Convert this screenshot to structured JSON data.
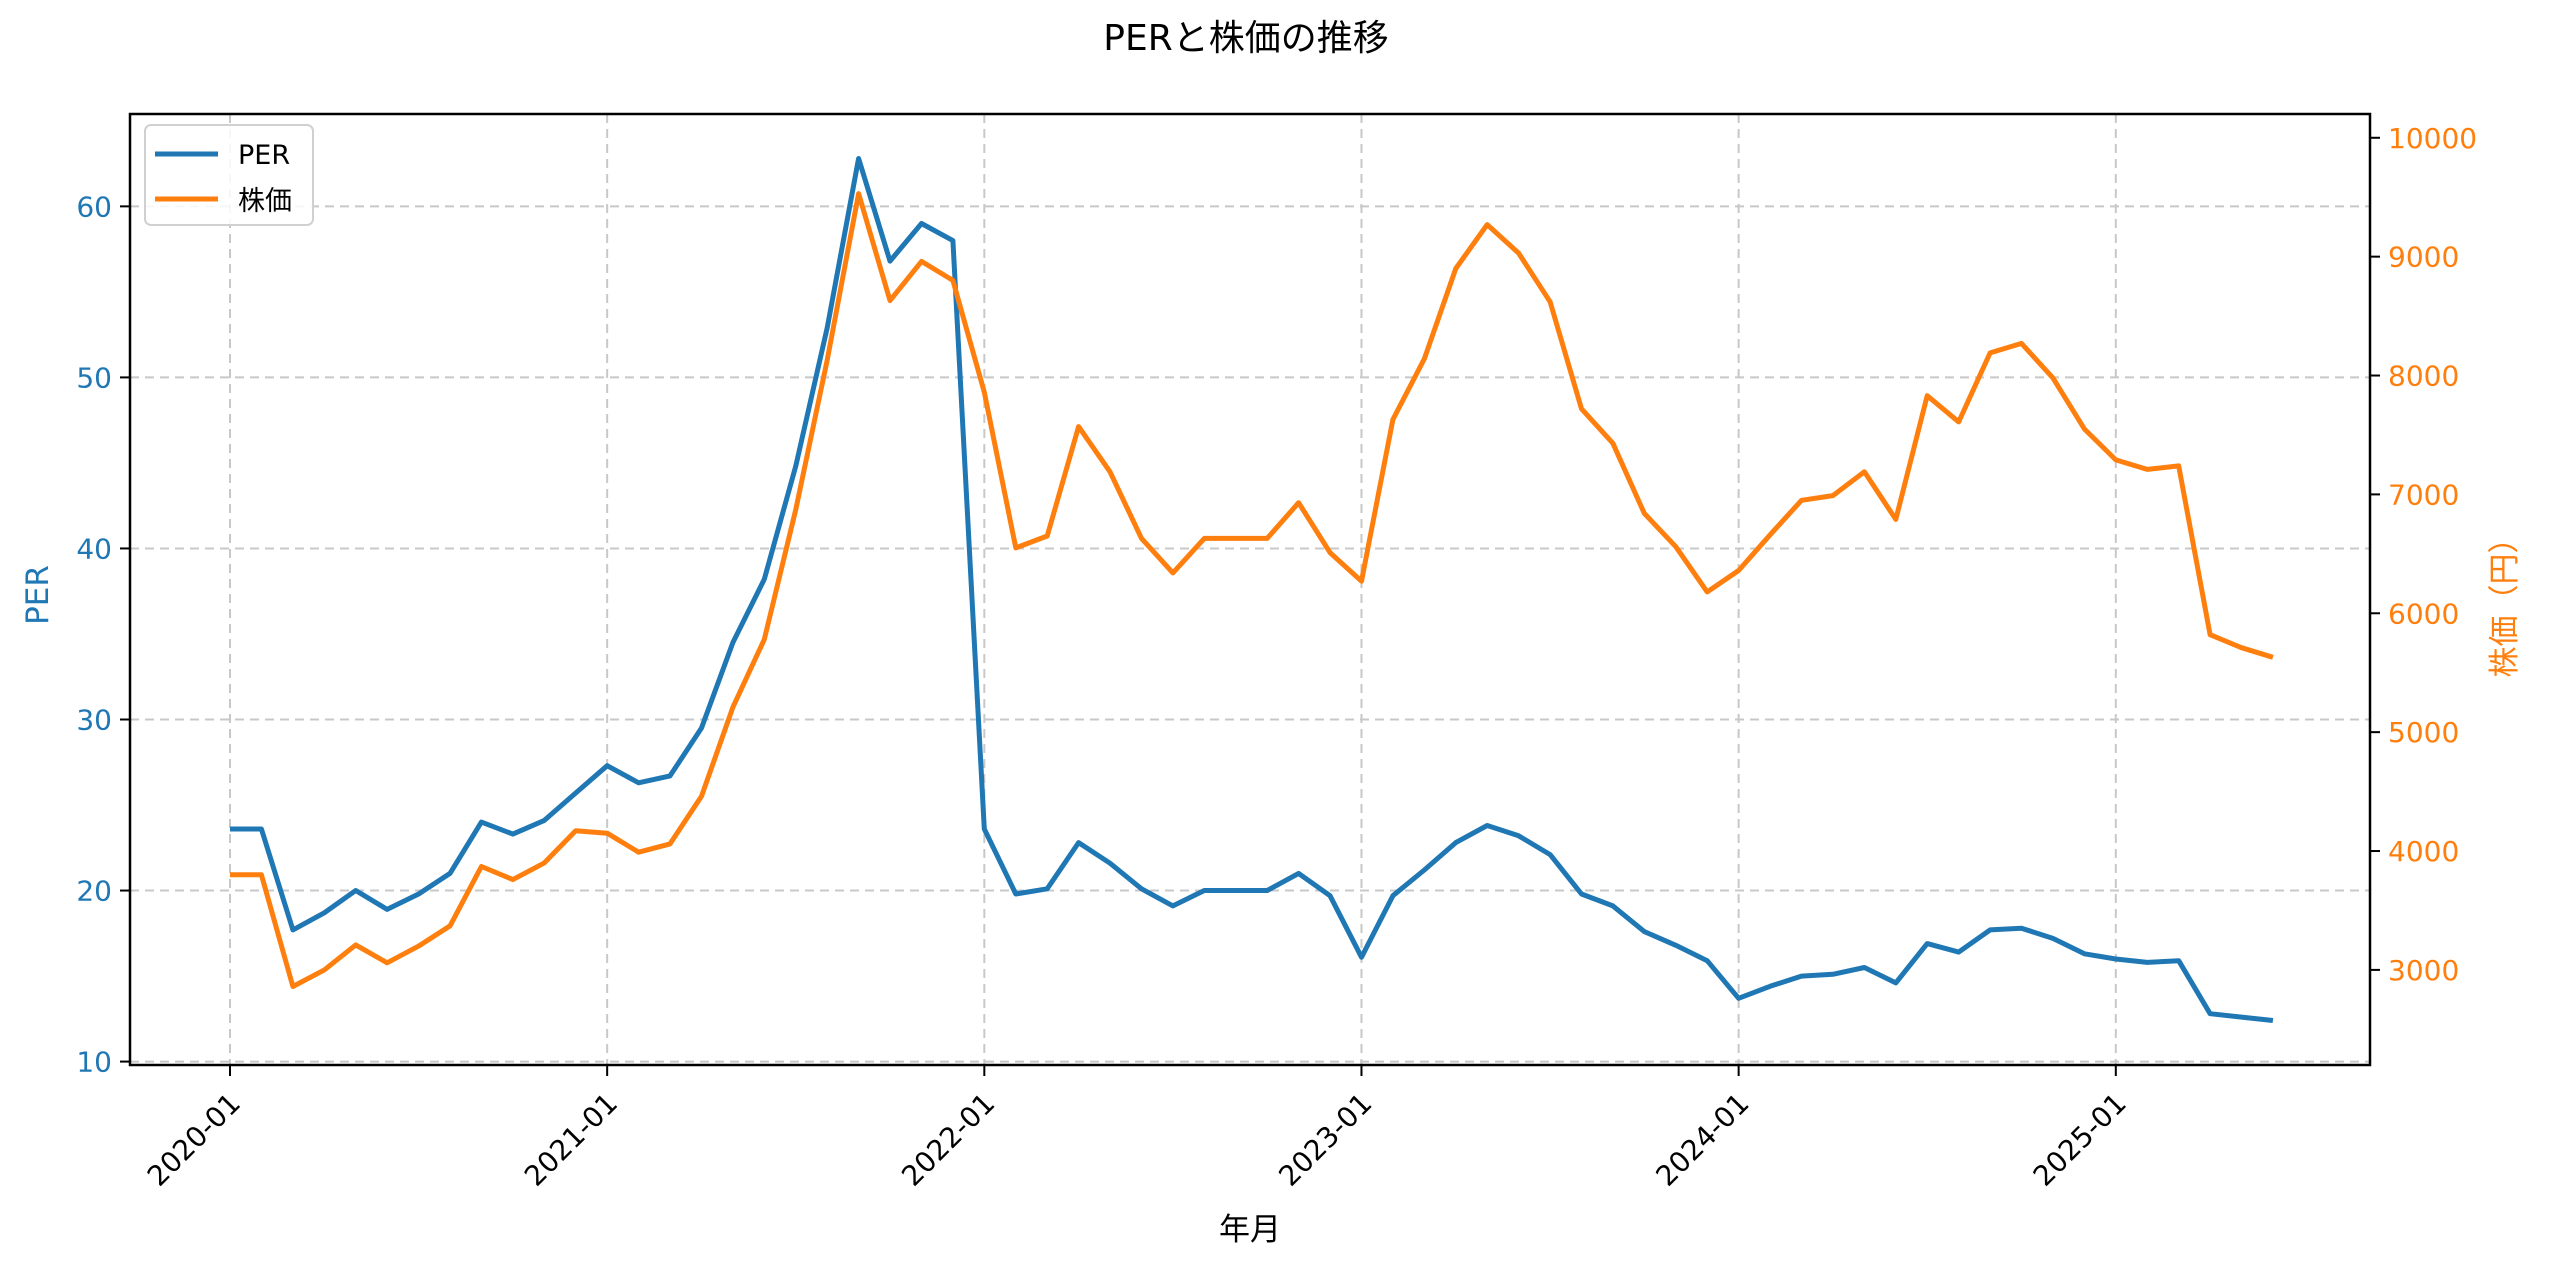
{
  "chart_data": {
    "type": "line",
    "title": "PERと株価の推移",
    "xlabel": "年月",
    "ylabel_left": "PER",
    "ylabel_right": "株価（円）",
    "ylim_left": [
      9.8,
      65.4
    ],
    "ylim_right": [
      2200,
      10200
    ],
    "yticks_left": [
      10,
      20,
      30,
      40,
      50,
      60
    ],
    "yticks_right": [
      3000,
      4000,
      5000,
      6000,
      7000,
      8000,
      9000,
      10000
    ],
    "xticks": [
      "2020-01",
      "2021-01",
      "2022-01",
      "2023-01",
      "2024-01",
      "2025-01"
    ],
    "grid": true,
    "legend_position": "upper left",
    "x": [
      "2020-01",
      "2020-02",
      "2020-03",
      "2020-04",
      "2020-05",
      "2020-06",
      "2020-07",
      "2020-08",
      "2020-09",
      "2020-10",
      "2020-11",
      "2020-12",
      "2021-01",
      "2021-02",
      "2021-03",
      "2021-04",
      "2021-05",
      "2021-06",
      "2021-07",
      "2021-08",
      "2021-09",
      "2021-10",
      "2021-11",
      "2021-12",
      "2022-01",
      "2022-02",
      "2022-03",
      "2022-04",
      "2022-05",
      "2022-06",
      "2022-07",
      "2022-08",
      "2022-09",
      "2022-10",
      "2022-11",
      "2022-12",
      "2023-01",
      "2023-02",
      "2023-03",
      "2023-04",
      "2023-05",
      "2023-06",
      "2023-07",
      "2023-08",
      "2023-09",
      "2023-10",
      "2023-11",
      "2023-12",
      "2024-01",
      "2024-02",
      "2024-03",
      "2024-04",
      "2024-05",
      "2024-06",
      "2024-07",
      "2024-08",
      "2024-09",
      "2024-10",
      "2024-11",
      "2024-12",
      "2025-01",
      "2025-02",
      "2025-03",
      "2025-04",
      "2025-05",
      "2025-06"
    ],
    "series": [
      {
        "name": "PER",
        "axis": "left",
        "color": "#1f77b4",
        "values": [
          23.6,
          23.6,
          17.7,
          18.7,
          20.0,
          18.9,
          19.8,
          21.0,
          24.0,
          23.3,
          24.1,
          25.7,
          27.3,
          26.3,
          26.7,
          29.5,
          34.5,
          38.2,
          44.8,
          52.9,
          62.8,
          56.8,
          59.0,
          58.0,
          23.6,
          19.8,
          20.1,
          22.8,
          21.6,
          20.1,
          19.1,
          20.0,
          20.0,
          20.0,
          21.0,
          19.7,
          16.1,
          19.7,
          21.2,
          22.8,
          23.8,
          23.2,
          22.1,
          19.8,
          19.1,
          17.6,
          16.8,
          15.9,
          13.7,
          14.4,
          15.0,
          15.1,
          15.5,
          14.6,
          16.9,
          16.4,
          17.7,
          17.8,
          17.2,
          16.3,
          16.0,
          15.8,
          15.9,
          12.8,
          12.6,
          12.4
        ]
      },
      {
        "name": "株価",
        "axis": "right",
        "color": "#ff7f0e",
        "values": [
          3800,
          3800,
          2860,
          3000,
          3210,
          3060,
          3200,
          3370,
          3870,
          3760,
          3900,
          4170,
          4150,
          3990,
          4060,
          4460,
          5210,
          5780,
          6870,
          8130,
          9530,
          8630,
          8960,
          8800,
          7860,
          6550,
          6650,
          7570,
          7190,
          6630,
          6340,
          6630,
          6630,
          6630,
          6930,
          6510,
          6270,
          7630,
          8140,
          8900,
          9270,
          9030,
          8620,
          7720,
          7430,
          6840,
          6560,
          6180,
          6360,
          6660,
          6950,
          6990,
          7190,
          6790,
          7830,
          7610,
          8190,
          8270,
          7980,
          7550,
          7290,
          7210,
          7240,
          5820,
          5710,
          5630
        ]
      }
    ]
  },
  "legend": {
    "items": [
      {
        "label": "PER",
        "color": "#1f77b4"
      },
      {
        "label": "株価",
        "color": "#ff7f0e"
      }
    ]
  }
}
